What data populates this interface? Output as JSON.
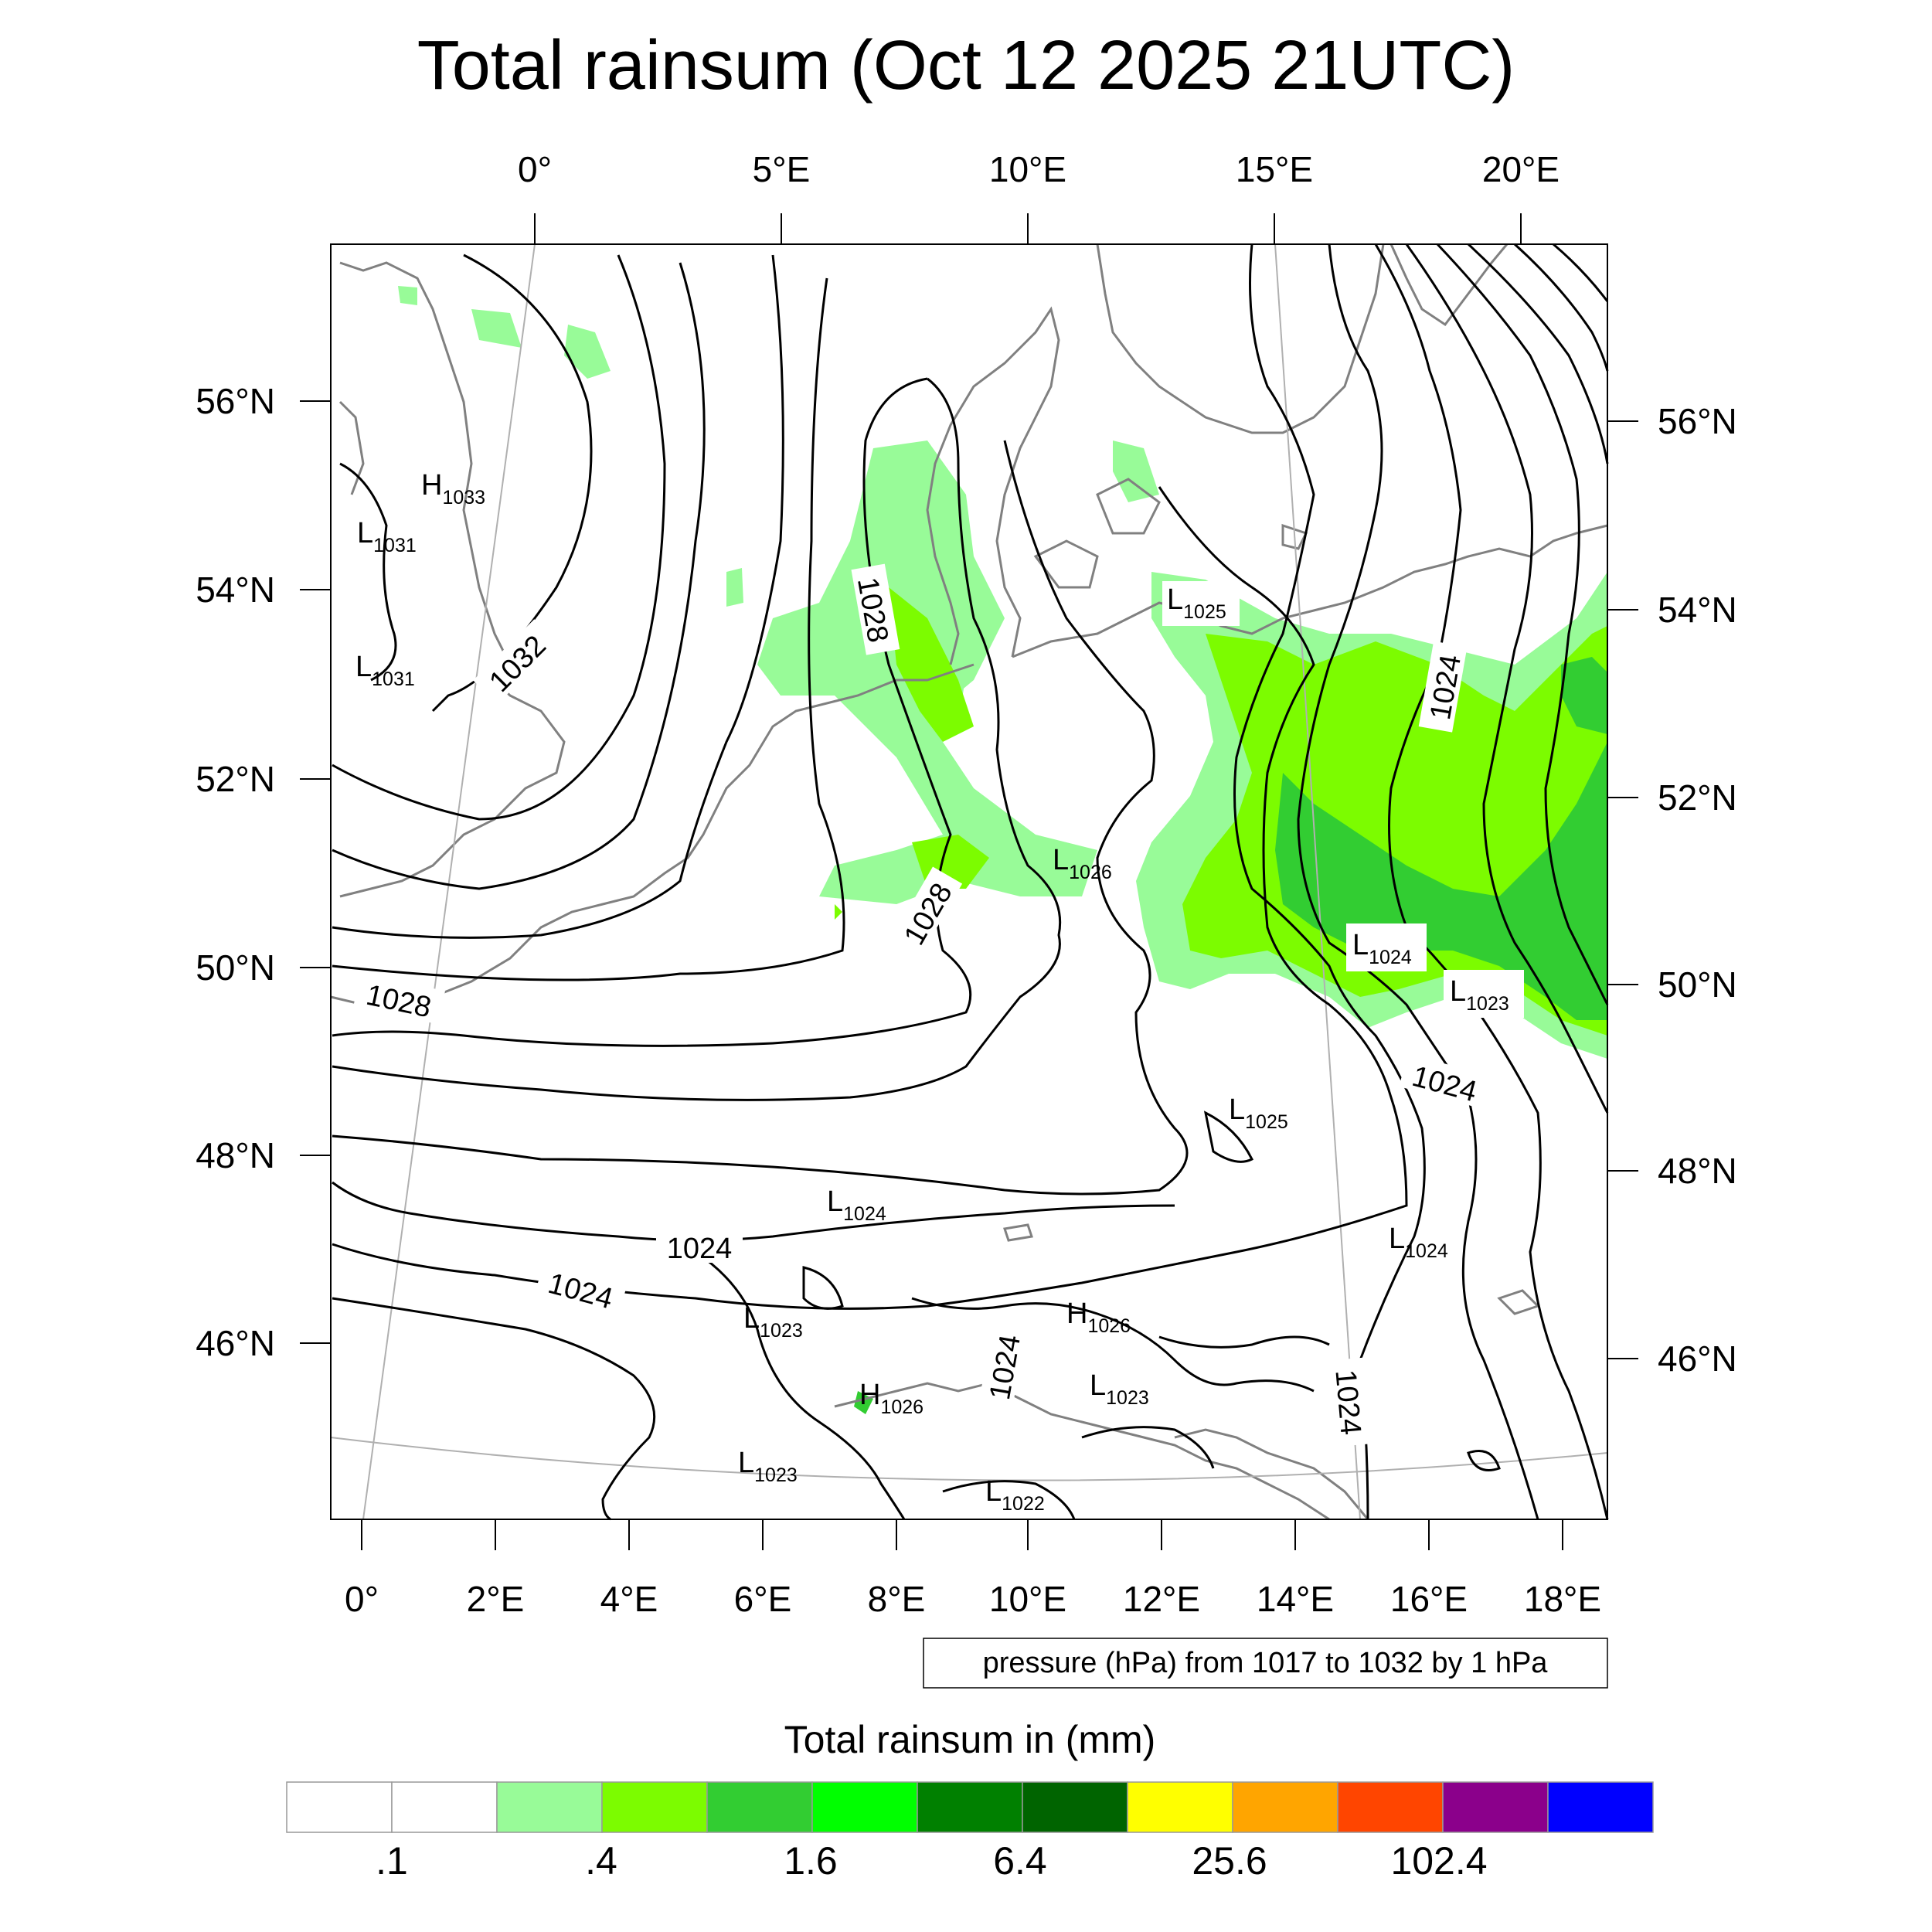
{
  "title": "Total rainsum (Oct 12 2025 21UTC)",
  "top_axis_labels": [
    "0°",
    "5°E",
    "10°E",
    "15°E",
    "20°E"
  ],
  "bottom_axis_labels": [
    "0°",
    "2°E",
    "4°E",
    "6°E",
    "8°E",
    "10°E",
    "12°E",
    "14°E",
    "16°E",
    "18°E"
  ],
  "left_axis_labels": [
    "56°N",
    "54°N",
    "52°N",
    "50°N",
    "48°N",
    "46°N"
  ],
  "right_axis_labels": [
    "56°N",
    "54°N",
    "52°N",
    "50°N",
    "48°N",
    "46°N"
  ],
  "contour_info": "pressure (hPa) from 1017 to 1032 by 1 hPa",
  "contour_labels": [
    "1032",
    "1028",
    "1028",
    "1028",
    "1024",
    "1024",
    "1024",
    "1024",
    "1024",
    "1024"
  ],
  "pressure_centers": [
    {
      "type": "H",
      "value": "1033"
    },
    {
      "type": "L",
      "value": "1031"
    },
    {
      "type": "L",
      "value": "1031"
    },
    {
      "type": "L",
      "value": "1025"
    },
    {
      "type": "L",
      "value": "1026"
    },
    {
      "type": "L",
      "value": "1024"
    },
    {
      "type": "L",
      "value": "1023"
    },
    {
      "type": "L",
      "value": "1025"
    },
    {
      "type": "L",
      "value": "1024"
    },
    {
      "type": "L",
      "value": "1024"
    },
    {
      "type": "L",
      "value": "1023"
    },
    {
      "type": "H",
      "value": "1026"
    },
    {
      "type": "H",
      "value": "1026"
    },
    {
      "type": "L",
      "value": "1023"
    },
    {
      "type": "L",
      "value": "1023"
    },
    {
      "type": "L",
      "value": "1022"
    }
  ],
  "colorbar": {
    "title": "Total rainsum in (mm)",
    "colors": [
      "#ffffff",
      "#ffffff",
      "#98fb98",
      "#7cfc00",
      "#32cd32",
      "#00ff00",
      "#008000",
      "#006400",
      "#ffff00",
      "#ffa500",
      "#ff4500",
      "#8b008b",
      "#0000ff"
    ],
    "labels": [
      ".1",
      ".4",
      "1.6",
      "6.4",
      "25.6",
      "102.4"
    ]
  },
  "colors": {
    "light_green": "#98fb98",
    "lawn_green": "#7cfc00",
    "lime_green": "#32cd32",
    "green": "#00e600",
    "coast": "#808080",
    "isobar": "#000000"
  }
}
